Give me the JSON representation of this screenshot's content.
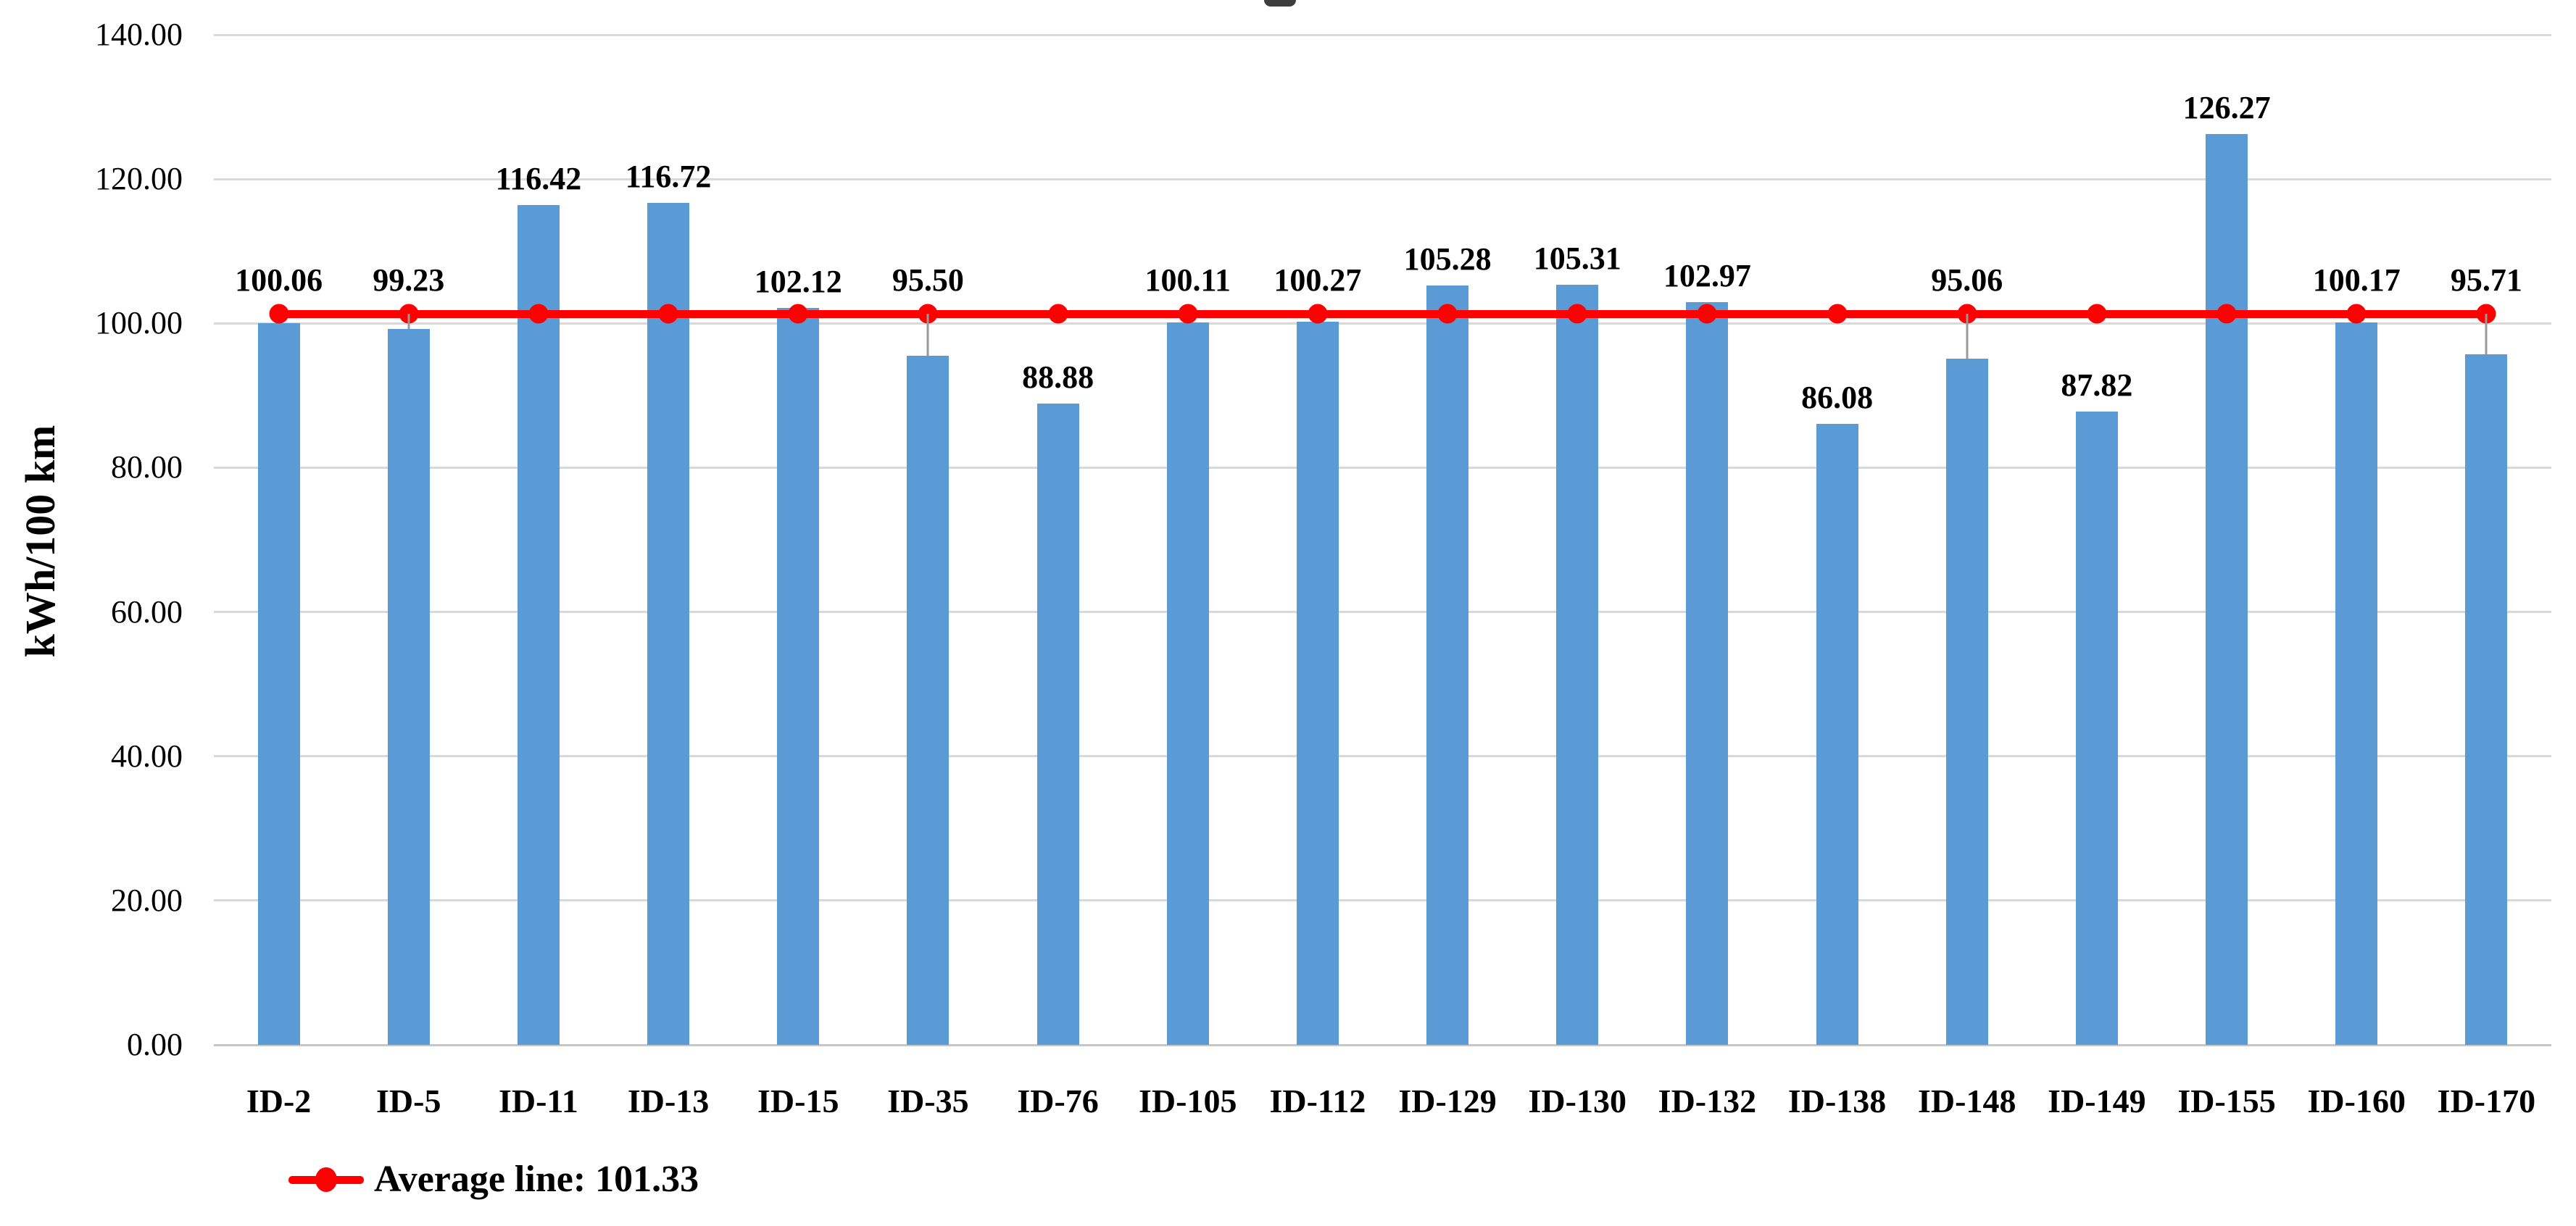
{
  "chart_data": {
    "type": "bar",
    "categories": [
      "ID-2",
      "ID-5",
      "ID-11",
      "ID-13",
      "ID-15",
      "ID-35",
      "ID-76",
      "ID-105",
      "ID-112",
      "ID-129",
      "ID-130",
      "ID-132",
      "ID-138",
      "ID-148",
      "ID-149",
      "ID-155",
      "ID-160",
      "ID-170"
    ],
    "values": [
      100.06,
      99.23,
      116.42,
      116.72,
      102.12,
      95.5,
      88.88,
      100.11,
      100.27,
      105.28,
      105.31,
      102.97,
      86.08,
      95.06,
      87.82,
      126.27,
      100.17,
      95.71
    ],
    "data_labels": [
      "100.06",
      "99.23",
      "116.42",
      "116.72",
      "102.12",
      "95.50",
      "88.88",
      "100.11",
      "100.27",
      "105.28",
      "105.31",
      "102.97",
      "86.08",
      "95.06",
      "87.82",
      "126.27",
      "100.17",
      "95.71"
    ],
    "ylabel": "kWh/100 km",
    "xlabel": "",
    "ylim": [
      0,
      140
    ],
    "ytick_step": 20,
    "y_tick_labels": [
      "0.00",
      "20.00",
      "40.00",
      "60.00",
      "80.00",
      "100.00",
      "120.00",
      "140.00"
    ],
    "grid": true,
    "average_line": {
      "value": 101.33,
      "legend_label": "Average line: 101.33"
    },
    "legend_position": "bottom-left",
    "colors": {
      "bar": "#5b9bd5",
      "average_line": "#ff0000",
      "gridline": "#d9d9d9",
      "leader_line": "#999999",
      "text": "#000000"
    }
  }
}
